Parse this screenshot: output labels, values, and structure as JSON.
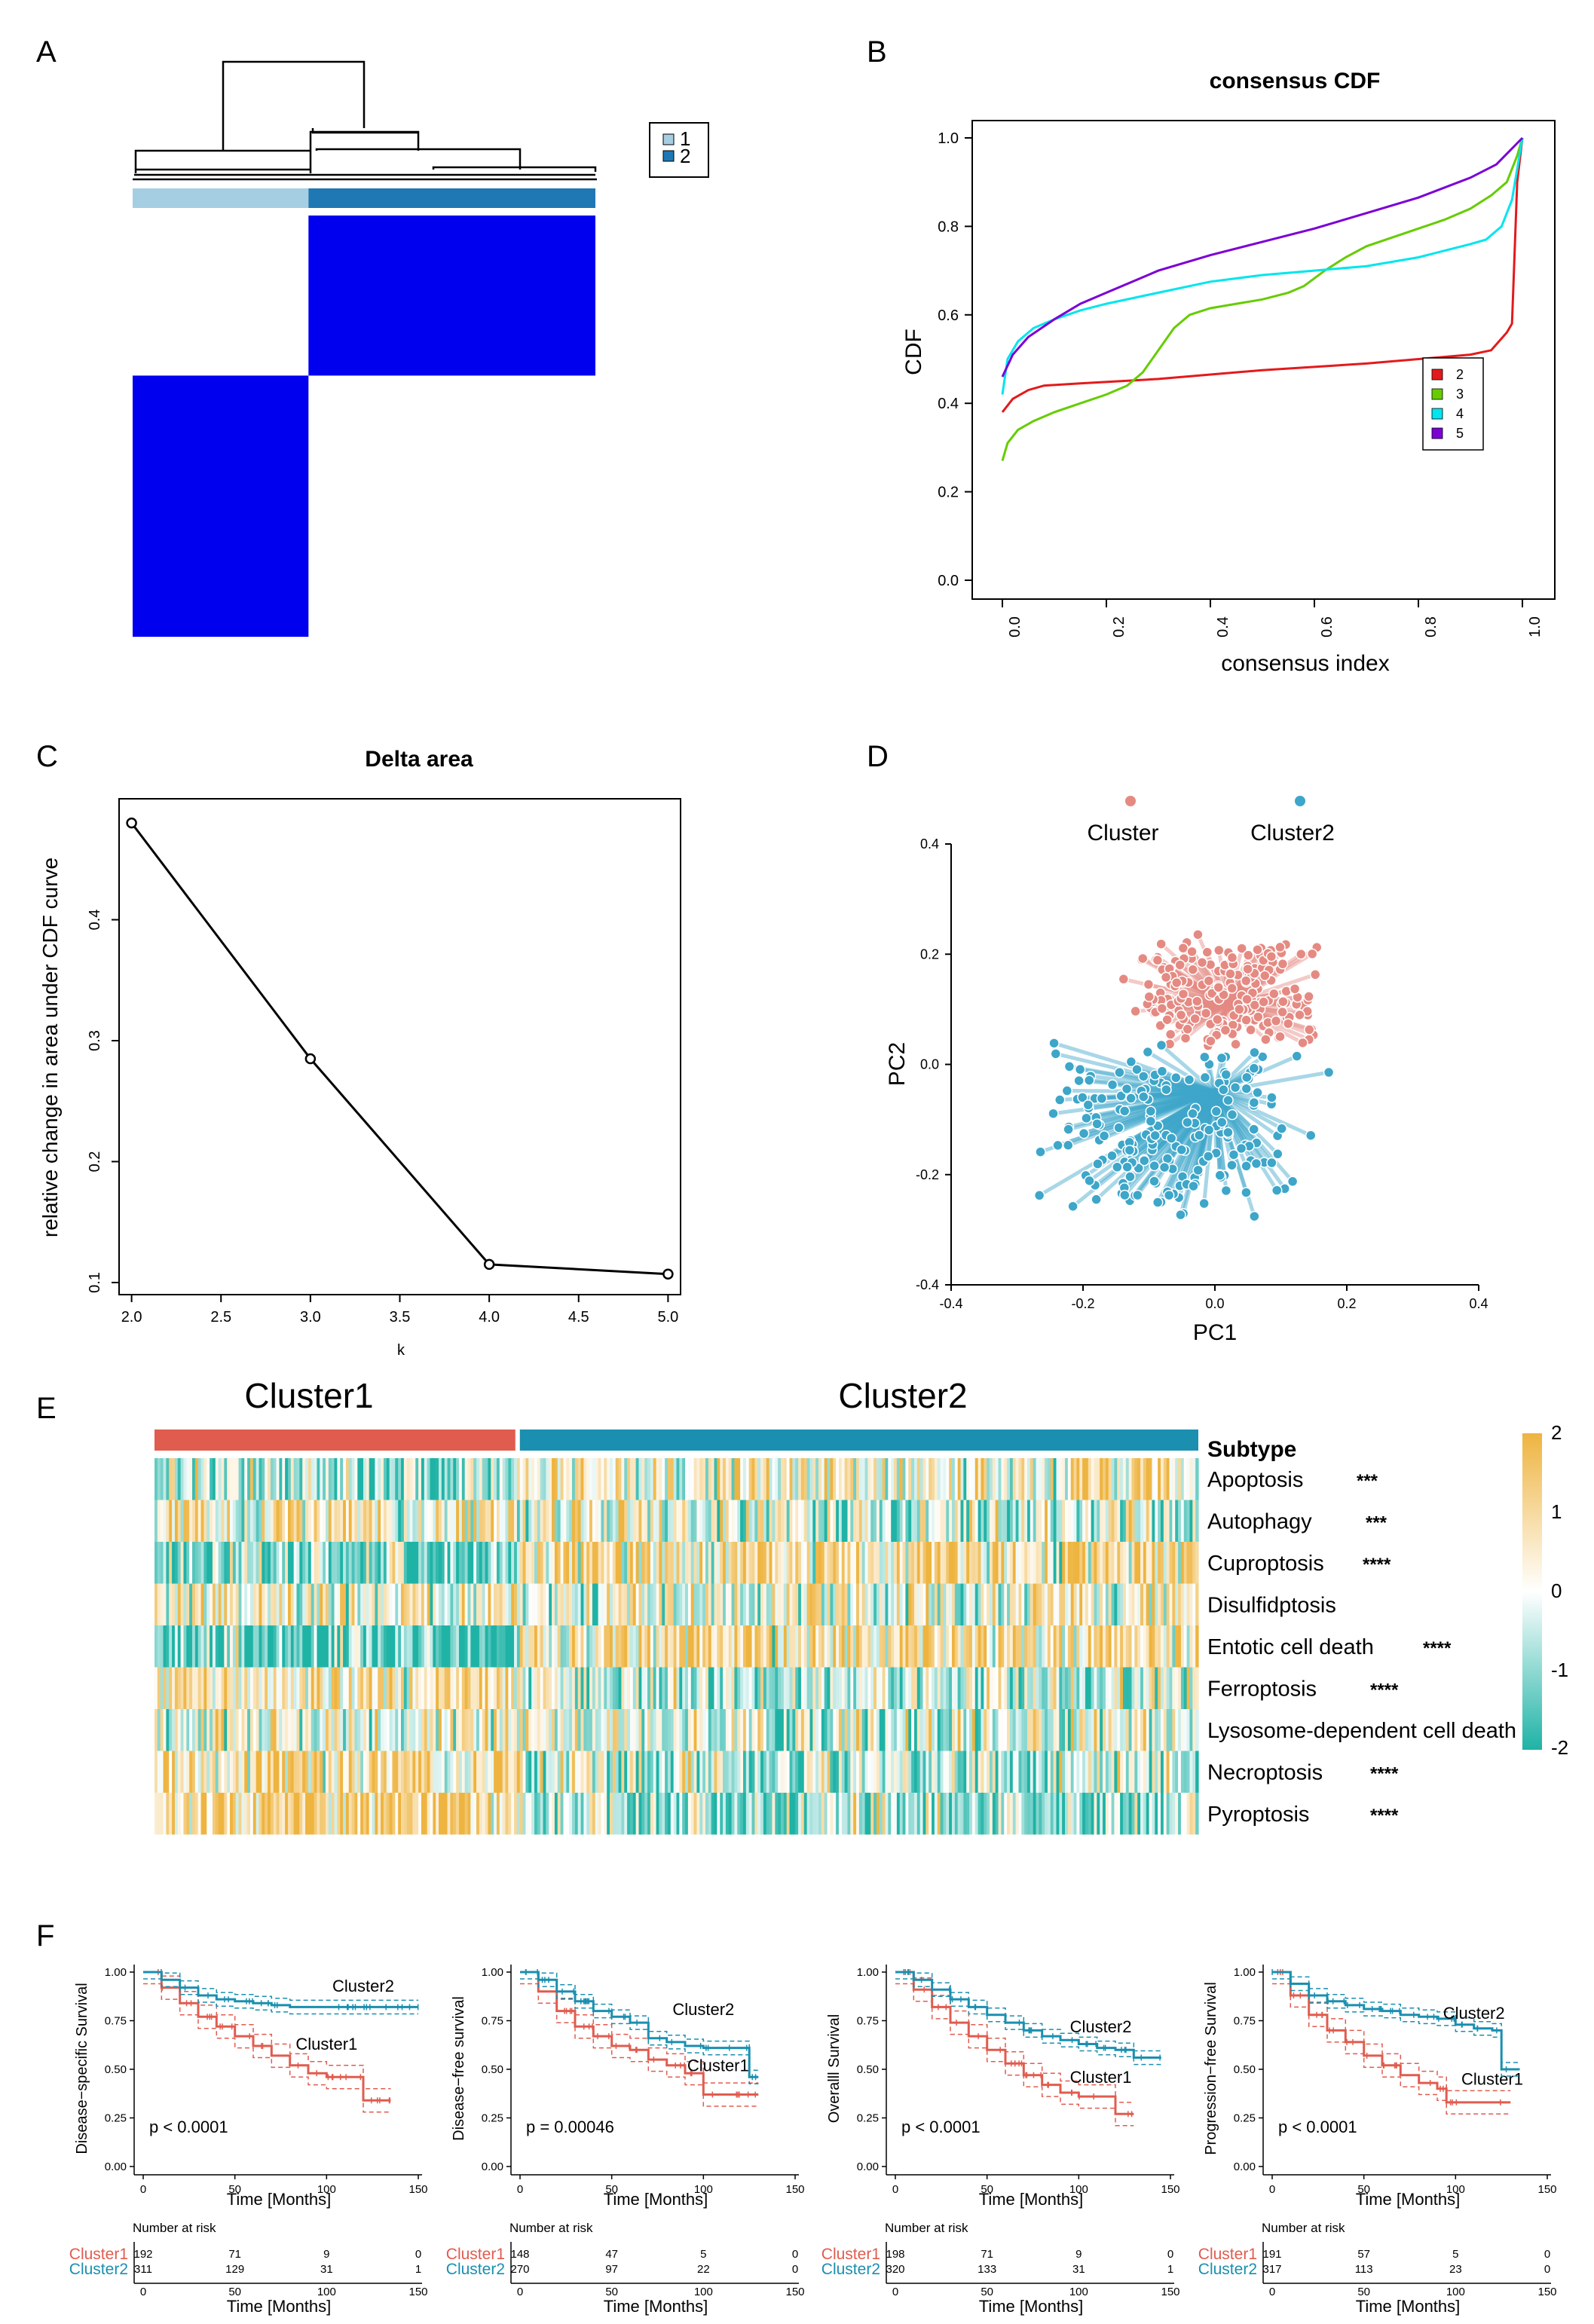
{
  "panels": {
    "A": "A",
    "B": "B",
    "C": "C",
    "D": "D",
    "E": "E",
    "F": "F"
  },
  "colors": {
    "consensus_blue": "#0000ee",
    "cluster_light": "#a6cee3",
    "cluster_dark": "#1f78b4",
    "cdf_k2": "#e31a1c",
    "cdf_k3": "#66cc00",
    "cdf_k4": "#00e5ee",
    "cdf_k5": "#7b00d6",
    "cluster1": "#e05c4f",
    "cluster2": "#1a8fb0",
    "heat_high": "#eeb440",
    "heat_mid": "#ffffff",
    "heat_low": "#1fb3a6"
  },
  "panel_a": {
    "legend_items": [
      "1",
      "2"
    ],
    "groups": [
      {
        "label": "1",
        "fraction": 0.38
      },
      {
        "label": "2",
        "fraction": 0.62
      }
    ]
  },
  "chart_data": [
    {
      "id": "consensus_cdf",
      "type": "line",
      "title": "consensus CDF",
      "xlabel": "consensus index",
      "ylabel": "CDF",
      "xlim": [
        0,
        1
      ],
      "ylim": [
        0,
        1
      ],
      "x_ticks": [
        "0.0",
        "0.2",
        "0.4",
        "0.6",
        "0.8",
        "1.0"
      ],
      "y_ticks": [
        "0.0",
        "0.2",
        "0.4",
        "0.6",
        "0.8",
        "1.0"
      ],
      "legend_position": "right",
      "series": [
        {
          "name": "2",
          "color": "#e31a1c",
          "x": [
            0,
            0.02,
            0.05,
            0.08,
            0.15,
            0.3,
            0.5,
            0.7,
            0.85,
            0.9,
            0.94,
            0.97,
            0.98,
            0.99,
            1.0
          ],
          "y": [
            0.38,
            0.41,
            0.43,
            0.44,
            0.445,
            0.455,
            0.475,
            0.49,
            0.505,
            0.51,
            0.52,
            0.56,
            0.58,
            0.9,
            1.0
          ]
        },
        {
          "name": "3",
          "color": "#66cc00",
          "x": [
            0,
            0.01,
            0.03,
            0.06,
            0.1,
            0.15,
            0.2,
            0.24,
            0.27,
            0.3,
            0.33,
            0.36,
            0.4,
            0.45,
            0.5,
            0.55,
            0.58,
            0.62,
            0.66,
            0.7,
            0.75,
            0.8,
            0.85,
            0.9,
            0.94,
            0.97,
            0.99,
            1.0
          ],
          "y": [
            0.27,
            0.31,
            0.34,
            0.36,
            0.38,
            0.4,
            0.42,
            0.44,
            0.47,
            0.52,
            0.57,
            0.6,
            0.615,
            0.625,
            0.635,
            0.65,
            0.665,
            0.7,
            0.73,
            0.755,
            0.775,
            0.795,
            0.815,
            0.84,
            0.87,
            0.9,
            0.96,
            1.0
          ]
        },
        {
          "name": "4",
          "color": "#00e5ee",
          "x": [
            0,
            0.01,
            0.03,
            0.06,
            0.1,
            0.15,
            0.2,
            0.3,
            0.4,
            0.5,
            0.6,
            0.7,
            0.8,
            0.85,
            0.9,
            0.93,
            0.96,
            0.98,
            1.0
          ],
          "y": [
            0.42,
            0.5,
            0.54,
            0.57,
            0.59,
            0.61,
            0.625,
            0.65,
            0.675,
            0.69,
            0.7,
            0.71,
            0.73,
            0.745,
            0.76,
            0.77,
            0.8,
            0.86,
            1.0
          ]
        },
        {
          "name": "5",
          "color": "#7b00d6",
          "x": [
            0,
            0.02,
            0.05,
            0.1,
            0.15,
            0.2,
            0.3,
            0.4,
            0.5,
            0.6,
            0.7,
            0.8,
            0.9,
            0.95,
            1.0
          ],
          "y": [
            0.46,
            0.51,
            0.55,
            0.59,
            0.625,
            0.65,
            0.7,
            0.735,
            0.765,
            0.795,
            0.83,
            0.865,
            0.91,
            0.94,
            1.0
          ]
        }
      ]
    },
    {
      "id": "delta_area",
      "type": "line",
      "title": "Delta area",
      "xlabel": "k",
      "ylabel": "relative change in area under CDF curve",
      "xlim": [
        1.93,
        5.07
      ],
      "ylim": [
        0.09,
        0.5
      ],
      "x_ticks": [
        "2.0",
        "2.5",
        "3.0",
        "3.5",
        "4.0",
        "4.5",
        "5.0"
      ],
      "y_ticks": [
        "0.1",
        "0.2",
        "0.3",
        "0.4"
      ],
      "x": [
        2,
        3,
        4,
        5
      ],
      "y": [
        0.48,
        0.285,
        0.115,
        0.107
      ]
    },
    {
      "id": "pca",
      "type": "scatter",
      "xlabel": "PC1",
      "ylabel": "PC2",
      "xlim": [
        -0.4,
        0.4
      ],
      "ylim": [
        -0.4,
        0.4
      ],
      "x_ticks": [
        "-0.4",
        "-0.2",
        "0.0",
        "0.2",
        "0.4"
      ],
      "y_ticks": [
        "-0.4",
        "-0.2",
        "0.0",
        "0.2",
        "0.4"
      ],
      "legend": [
        "Cluster",
        "Cluster2"
      ],
      "legend_position": "top",
      "series": [
        {
          "name": "Cluster",
          "color": "#e58a82",
          "centroid": [
            0.02,
            0.11
          ],
          "x_spread": [
            -0.14,
            0.17
          ],
          "y_spread": [
            0.02,
            0.24
          ]
        },
        {
          "name": "Cluster2",
          "color": "#3da6c9",
          "centroid": [
            0.0,
            -0.05
          ],
          "x_spread": [
            -0.29,
            0.18
          ],
          "y_spread": [
            -0.29,
            0.04
          ]
        }
      ]
    },
    {
      "id": "heatmap",
      "type": "heatmap",
      "column_groups": [
        {
          "name": "Cluster1",
          "fraction": 0.35
        },
        {
          "name": "Cluster2",
          "fraction": 0.65
        }
      ],
      "annotation_label": "Subtype",
      "rows": [
        {
          "name": "Apoptosis",
          "sig": "***",
          "c1_mean": -0.3,
          "c2_mean": 0.2
        },
        {
          "name": "Autophagy",
          "sig": "***",
          "c1_mean": 0.25,
          "c2_mean": -0.15
        },
        {
          "name": "Cuproptosis",
          "sig": "****",
          "c1_mean": -0.6,
          "c2_mean": 0.35
        },
        {
          "name": "Disulfidptosis",
          "sig": "",
          "c1_mean": 0.1,
          "c2_mean": 0.0
        },
        {
          "name": "Entotic cell death",
          "sig": "****",
          "c1_mean": -0.7,
          "c2_mean": 0.4
        },
        {
          "name": "Ferroptosis",
          "sig": "****",
          "c1_mean": 0.3,
          "c2_mean": -0.2
        },
        {
          "name": "Lysosome-dependent cell death",
          "sig": "",
          "c1_mean": 0.05,
          "c2_mean": -0.05
        },
        {
          "name": "Necroptosis",
          "sig": "****",
          "c1_mean": 0.4,
          "c2_mean": -0.3
        },
        {
          "name": "Pyroptosis",
          "sig": "****",
          "c1_mean": 0.6,
          "c2_mean": -0.4
        }
      ],
      "scale_ticks": [
        "2",
        "1",
        "0",
        "-1",
        "-2"
      ],
      "scale_range": [
        -2,
        2
      ]
    },
    {
      "id": "km_dss",
      "type": "line",
      "ylabel": "Disease−specific Survival",
      "xlabel": "Time [Months]",
      "xlim": [
        0,
        150
      ],
      "ylim": [
        0,
        1
      ],
      "x_ticks": [
        "0",
        "50",
        "100",
        "150"
      ],
      "y_ticks": [
        "0.00",
        "0.25",
        "0.50",
        "0.75",
        "1.00"
      ],
      "pvalue": "p < 0.0001",
      "series": [
        {
          "name": "Cluster1",
          "color": "#e05c4f",
          "x": [
            0,
            10,
            20,
            30,
            40,
            50,
            60,
            70,
            80,
            90,
            100,
            120,
            130,
            135
          ],
          "y": [
            1.0,
            0.92,
            0.84,
            0.77,
            0.72,
            0.67,
            0.62,
            0.57,
            0.52,
            0.48,
            0.46,
            0.34,
            0.34,
            0.34
          ],
          "label_xy": [
            100,
            0.6
          ]
        },
        {
          "name": "Cluster2",
          "color": "#1a8fb0",
          "x": [
            0,
            10,
            20,
            30,
            40,
            50,
            60,
            70,
            80,
            90,
            100,
            120,
            140,
            150
          ],
          "y": [
            1.0,
            0.96,
            0.92,
            0.88,
            0.86,
            0.85,
            0.84,
            0.83,
            0.82,
            0.82,
            0.82,
            0.82,
            0.82,
            0.82
          ],
          "label_xy": [
            120,
            0.9
          ]
        }
      ],
      "risk_table": {
        "header": "Number at risk",
        "rows": [
          {
            "name": "Cluster1",
            "values": [
              "192",
              "71",
              "9",
              "0"
            ]
          },
          {
            "name": "Cluster2",
            "values": [
              "311",
              "129",
              "31",
              "1"
            ]
          }
        ],
        "xlabel": "Time [Months]"
      }
    },
    {
      "id": "km_dfs",
      "type": "line",
      "ylabel": "Disease−free survival",
      "xlabel": "Time [Months]",
      "xlim": [
        0,
        150
      ],
      "ylim": [
        0,
        1
      ],
      "x_ticks": [
        "0",
        "50",
        "100",
        "150"
      ],
      "y_ticks": [
        "0.00",
        "0.25",
        "0.50",
        "0.75",
        "1.00"
      ],
      "pvalue": "p = 0.00046",
      "series": [
        {
          "name": "Cluster1",
          "color": "#e05c4f",
          "x": [
            0,
            10,
            20,
            30,
            40,
            50,
            60,
            70,
            80,
            90,
            100,
            120,
            130
          ],
          "y": [
            1.0,
            0.9,
            0.8,
            0.72,
            0.67,
            0.62,
            0.6,
            0.55,
            0.52,
            0.48,
            0.37,
            0.37,
            0.37
          ],
          "label_xy": [
            108,
            0.49
          ]
        },
        {
          "name": "Cluster2",
          "color": "#1a8fb0",
          "x": [
            0,
            10,
            20,
            30,
            40,
            50,
            60,
            70,
            80,
            90,
            100,
            120,
            125,
            130
          ],
          "y": [
            1.0,
            0.96,
            0.9,
            0.85,
            0.8,
            0.77,
            0.74,
            0.66,
            0.64,
            0.62,
            0.61,
            0.61,
            0.46,
            0.46
          ],
          "label_xy": [
            100,
            0.78
          ]
        }
      ],
      "risk_table": {
        "header": "Number at risk",
        "rows": [
          {
            "name": "Cluster1",
            "values": [
              "148",
              "47",
              "5",
              "0"
            ]
          },
          {
            "name": "Cluster2",
            "values": [
              "270",
              "97",
              "22",
              "0"
            ]
          }
        ],
        "xlabel": "Time [Months]"
      }
    },
    {
      "id": "km_os",
      "type": "line",
      "ylabel": "Overalll Survival",
      "xlabel": "Time [Months]",
      "xlim": [
        0,
        150
      ],
      "ylim": [
        0,
        1
      ],
      "x_ticks": [
        "0",
        "50",
        "100",
        "150"
      ],
      "y_ticks": [
        "0.00",
        "0.25",
        "0.50",
        "0.75",
        "1.00"
      ],
      "pvalue": "p < 0.0001",
      "series": [
        {
          "name": "Cluster1",
          "color": "#e05c4f",
          "x": [
            0,
            10,
            20,
            30,
            40,
            50,
            60,
            70,
            80,
            90,
            100,
            110,
            120,
            130
          ],
          "y": [
            1.0,
            0.91,
            0.82,
            0.74,
            0.67,
            0.6,
            0.53,
            0.47,
            0.42,
            0.38,
            0.36,
            0.36,
            0.27,
            0.27
          ],
          "label_xy": [
            112,
            0.43
          ]
        },
        {
          "name": "Cluster2",
          "color": "#1a8fb0",
          "x": [
            0,
            10,
            20,
            30,
            40,
            50,
            60,
            70,
            80,
            90,
            100,
            110,
            120,
            130,
            145
          ],
          "y": [
            1.0,
            0.96,
            0.91,
            0.86,
            0.82,
            0.78,
            0.74,
            0.7,
            0.67,
            0.65,
            0.63,
            0.61,
            0.6,
            0.56,
            0.56
          ],
          "label_xy": [
            112,
            0.69
          ]
        }
      ],
      "risk_table": {
        "header": "Number at risk",
        "rows": [
          {
            "name": "Cluster1",
            "values": [
              "198",
              "71",
              "9",
              "0"
            ]
          },
          {
            "name": "Cluster2",
            "values": [
              "320",
              "133",
              "31",
              "1"
            ]
          }
        ],
        "xlabel": "Time [Months]"
      }
    },
    {
      "id": "km_pfs",
      "type": "line",
      "ylabel": "Progression−free Survival",
      "xlabel": "Time [Months]",
      "xlim": [
        0,
        150
      ],
      "ylim": [
        0,
        1
      ],
      "x_ticks": [
        "0",
        "50",
        "100",
        "150"
      ],
      "y_ticks": [
        "0.00",
        "0.25",
        "0.50",
        "0.75",
        "1.00"
      ],
      "pvalue": "p < 0.0001",
      "series": [
        {
          "name": "Cluster1",
          "color": "#e05c4f",
          "x": [
            0,
            10,
            20,
            30,
            40,
            50,
            60,
            70,
            80,
            90,
            95,
            110,
            130
          ],
          "y": [
            1.0,
            0.88,
            0.78,
            0.7,
            0.64,
            0.57,
            0.52,
            0.47,
            0.43,
            0.4,
            0.33,
            0.33,
            0.33
          ],
          "label_xy": [
            120,
            0.42
          ]
        },
        {
          "name": "Cluster2",
          "color": "#1a8fb0",
          "x": [
            0,
            10,
            20,
            30,
            40,
            50,
            60,
            70,
            80,
            90,
            100,
            110,
            120,
            125,
            135
          ],
          "y": [
            1.0,
            0.94,
            0.88,
            0.85,
            0.83,
            0.81,
            0.8,
            0.78,
            0.77,
            0.76,
            0.73,
            0.71,
            0.7,
            0.5,
            0.5
          ],
          "label_xy": [
            110,
            0.76
          ]
        }
      ],
      "risk_table": {
        "header": "Number at risk",
        "rows": [
          {
            "name": "Cluster1",
            "values": [
              "191",
              "57",
              "5",
              "0"
            ]
          },
          {
            "name": "Cluster2",
            "values": [
              "317",
              "113",
              "23",
              "0"
            ]
          }
        ],
        "xlabel": "Time [Months]"
      }
    }
  ]
}
